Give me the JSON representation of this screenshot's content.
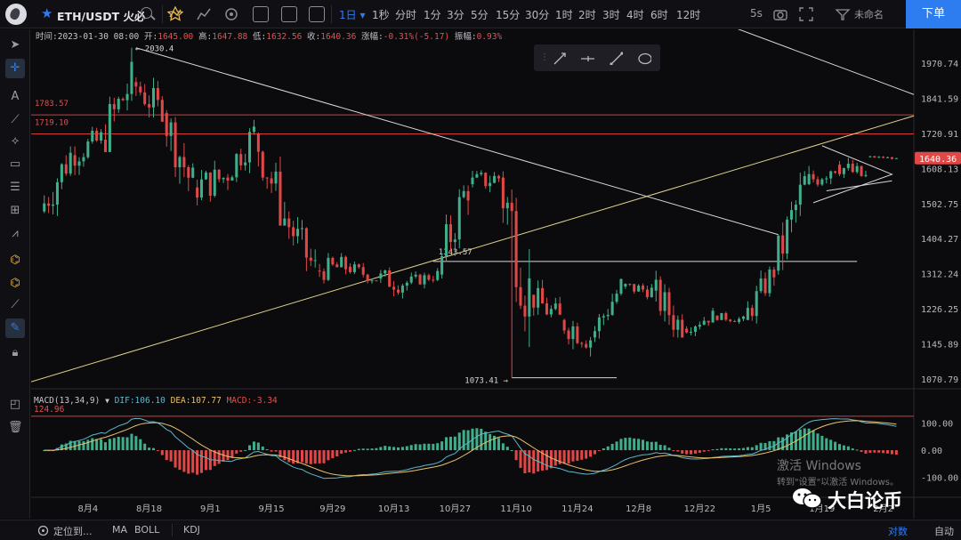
{
  "toolbar": {
    "symbol": "ETH/USDT 火必",
    "timeframes": [
      "1日",
      "1秒",
      "分时",
      "1分",
      "3分",
      "5分",
      "15分",
      "30分",
      "1时",
      "2时",
      "3时",
      "4时",
      "6时",
      "12时"
    ],
    "active_timeframe": "1日",
    "refresh": "5s",
    "layout_name": "未命名",
    "order_button": "下单",
    "icons": [
      "search-icon",
      "indicator-icon",
      "chart-type-icon",
      "settings-icon",
      "save-icon",
      "template-icon",
      "layout-icon",
      "camera-icon",
      "fullscreen-icon",
      "draw-icon"
    ]
  },
  "left_tools": [
    "cursor-icon",
    "crosshair-icon",
    "text-icon",
    "trendline-icon",
    "fib-icon",
    "rectangle-icon",
    "channel-icon",
    "measure-icon",
    "pattern-icon",
    "magnet-icon",
    "magnet-alt-icon",
    "ruler-icon",
    "pen-icon",
    "lock-icon",
    "eye-icon",
    "trash-icon"
  ],
  "ohlc": {
    "time_label": "时间:",
    "time": "2023-01-30 08:00",
    "open_label": "开:",
    "open": "1645.00",
    "high_label": "高:",
    "high": "1647.88",
    "low_label": "低:",
    "low": "1632.56",
    "close_label": "收:",
    "close": "1640.36",
    "change_label": "涨幅:",
    "change": "-0.31%(-5.17)",
    "amp_label": "振幅:",
    "amp": "0.93%"
  },
  "macd": {
    "name": "MACD(13,34,9)",
    "dif_label": "DIF:",
    "dif": "106.10",
    "dea_label": "DEA:",
    "dea": "107.77",
    "macd_label": "MACD:",
    "macd": "-3.34",
    "line_badge": "124.96"
  },
  "annotations": {
    "high_marker": "2030.4",
    "low_marker": "1073.41",
    "level_1343": "1343.57",
    "level_1783": "1783.57",
    "level_1719": "1719.10",
    "current_price": "1640.36"
  },
  "price_axis": [
    "1970.74",
    "1841.59",
    "1720.91",
    "1608.13",
    "1502.75",
    "1404.27",
    "1312.24",
    "1226.25",
    "1145.89",
    "1070.79"
  ],
  "macd_axis": [
    "100.00",
    "0.00",
    "-100.00"
  ],
  "time_axis": [
    "8月4",
    "8月18",
    "9月1",
    "9月15",
    "9月29",
    "10月13",
    "10月27",
    "11月10",
    "11月24",
    "12月8",
    "12月22",
    "1月5",
    "1月19",
    "2月2"
  ],
  "bottom": {
    "locate": "定位到...",
    "ma": "MA",
    "boll": "BOLL",
    "kdj": "KDJ",
    "log": "对数",
    "auto": "自动"
  },
  "watermark": {
    "line1": "激活 Windows",
    "line2": "转到\"设置\"以激活 Windows。",
    "brand": "大白论币"
  },
  "colors": {
    "up": "#3fae8a",
    "down": "#e04848",
    "accent": "#2f7bf5",
    "hline": "#d03c3c"
  },
  "chart_data": {
    "type": "candlestick",
    "symbol": "ETH/USDT",
    "interval": "1日",
    "price_range": [
      1040,
      2060
    ],
    "x_range": [
      "2022-07-22",
      "2023-02-09"
    ],
    "horizontal_lines": [
      1783.57,
      1719.1
    ],
    "support_segments": [
      {
        "label": "1343.57",
        "price": 1343.57,
        "from": "2022-10-22",
        "to": "2023-01-27"
      },
      {
        "label": "1073.41",
        "price": 1073.41,
        "from": "2022-11-09",
        "to": "2022-12-03"
      }
    ],
    "trendlines": [
      {
        "from": [
          "2022-08-15",
          2030
        ],
        "to": [
          "2023-01-09",
          1415
        ]
      },
      {
        "from": [
          "2022-07-22",
          1065
        ],
        "to": [
          "2023-02-09",
          1780
        ]
      },
      {
        "from": [
          "2022-12-30",
          2110
        ],
        "to": [
          "2023-02-09",
          1855
        ]
      }
    ],
    "candles_weekly_approx": [
      {
        "date": "2022-07-25",
        "o": 1480,
        "h": 1700,
        "l": 1420,
        "c": 1650
      },
      {
        "date": "2022-08-01",
        "o": 1650,
        "h": 1760,
        "l": 1560,
        "c": 1700
      },
      {
        "date": "2022-08-08",
        "o": 1700,
        "h": 2030,
        "l": 1660,
        "c": 1900
      },
      {
        "date": "2022-08-15",
        "o": 1900,
        "h": 2030,
        "l": 1760,
        "c": 1790
      },
      {
        "date": "2022-08-22",
        "o": 1790,
        "h": 1800,
        "l": 1460,
        "c": 1550
      },
      {
        "date": "2022-08-29",
        "o": 1550,
        "h": 1640,
        "l": 1420,
        "c": 1580
      },
      {
        "date": "2022-09-05",
        "o": 1580,
        "h": 1780,
        "l": 1540,
        "c": 1720
      },
      {
        "date": "2022-09-12",
        "o": 1720,
        "h": 1790,
        "l": 1440,
        "c": 1460
      },
      {
        "date": "2022-09-19",
        "o": 1460,
        "h": 1480,
        "l": 1240,
        "c": 1320
      },
      {
        "date": "2022-09-26",
        "o": 1320,
        "h": 1390,
        "l": 1260,
        "c": 1330
      },
      {
        "date": "2022-10-03",
        "o": 1330,
        "h": 1360,
        "l": 1280,
        "c": 1300
      },
      {
        "date": "2022-10-10",
        "o": 1300,
        "h": 1330,
        "l": 1200,
        "c": 1290
      },
      {
        "date": "2022-10-17",
        "o": 1290,
        "h": 1340,
        "l": 1270,
        "c": 1310
      },
      {
        "date": "2022-10-24",
        "o": 1310,
        "h": 1600,
        "l": 1300,
        "c": 1560
      },
      {
        "date": "2022-10-31",
        "o": 1560,
        "h": 1670,
        "l": 1520,
        "c": 1580
      },
      {
        "date": "2022-11-07",
        "o": 1580,
        "h": 1600,
        "l": 1073,
        "c": 1260
      },
      {
        "date": "2022-11-14",
        "o": 1260,
        "h": 1300,
        "l": 1150,
        "c": 1200
      },
      {
        "date": "2022-11-21",
        "o": 1200,
        "h": 1240,
        "l": 1080,
        "c": 1160
      },
      {
        "date": "2022-11-28",
        "o": 1160,
        "h": 1300,
        "l": 1150,
        "c": 1280
      },
      {
        "date": "2022-12-05",
        "o": 1280,
        "h": 1300,
        "l": 1220,
        "c": 1270
      },
      {
        "date": "2022-12-12",
        "o": 1270,
        "h": 1350,
        "l": 1160,
        "c": 1180
      },
      {
        "date": "2022-12-19",
        "o": 1180,
        "h": 1230,
        "l": 1160,
        "c": 1210
      },
      {
        "date": "2022-12-26",
        "o": 1210,
        "h": 1230,
        "l": 1190,
        "c": 1200
      },
      {
        "date": "2023-01-02",
        "o": 1200,
        "h": 1340,
        "l": 1190,
        "c": 1320
      },
      {
        "date": "2023-01-09",
        "o": 1320,
        "h": 1600,
        "l": 1310,
        "c": 1560
      },
      {
        "date": "2023-01-16",
        "o": 1560,
        "h": 1680,
        "l": 1510,
        "c": 1620
      },
      {
        "date": "2023-01-23",
        "o": 1620,
        "h": 1670,
        "l": 1540,
        "c": 1580
      },
      {
        "date": "2023-01-30",
        "o": 1645,
        "h": 1647.88,
        "l": 1632.56,
        "c": 1640.36
      }
    ],
    "macd": {
      "params": [
        13,
        34,
        9
      ],
      "dif": 106.1,
      "dea": 107.77,
      "hist": -3.34,
      "range": [
        -170,
        190
      ]
    }
  }
}
